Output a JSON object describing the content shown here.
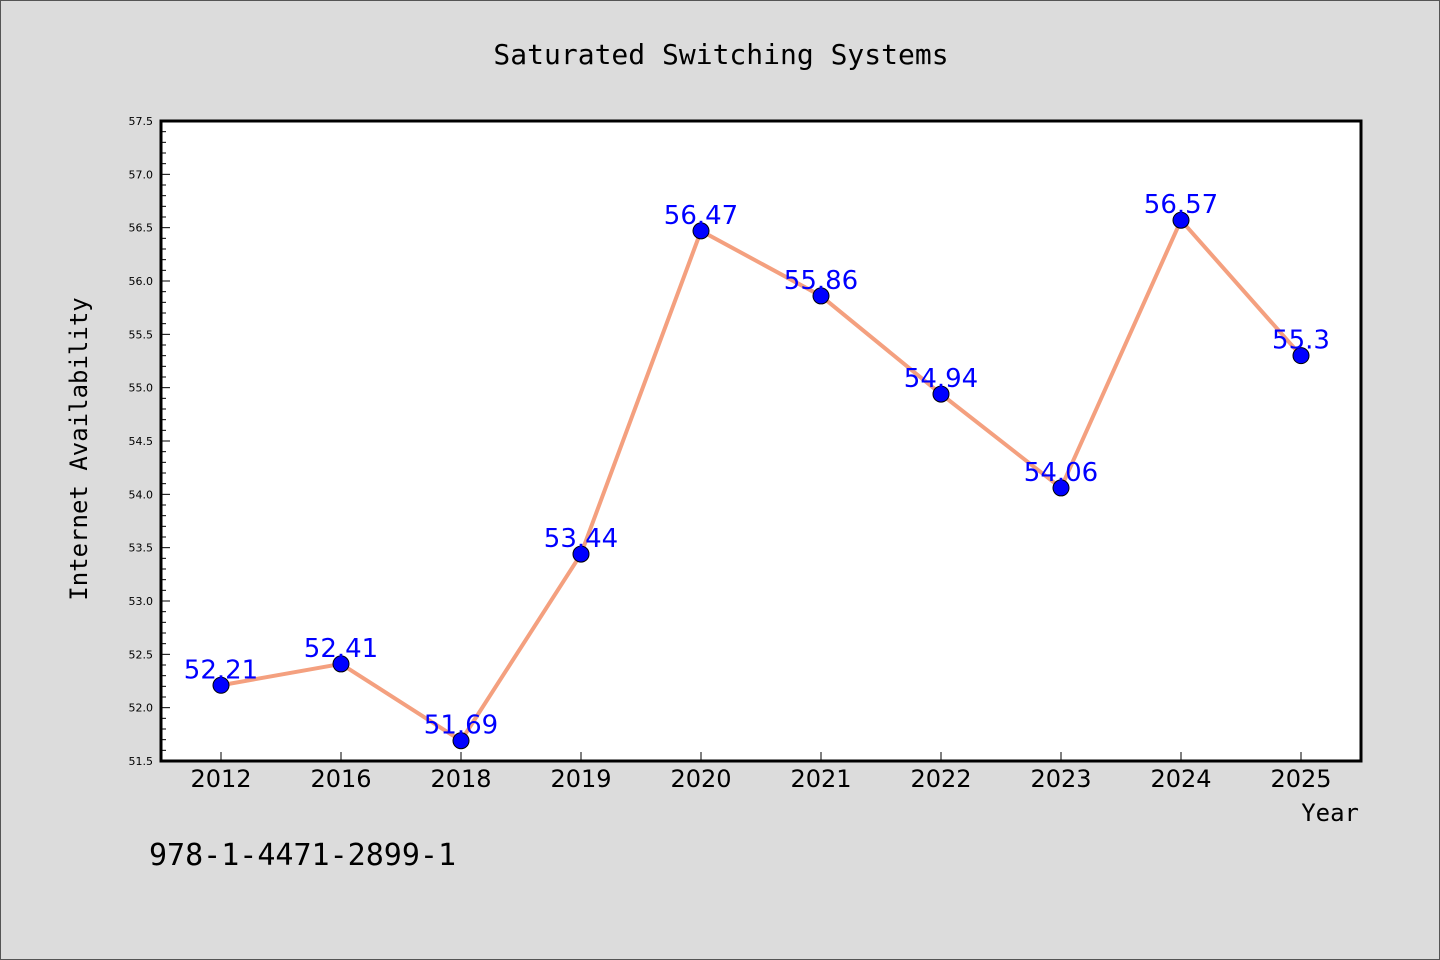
{
  "caption": "978-1-4471-2899-1",
  "colors": {
    "background": "#dcdcdc",
    "plot_background": "#ffffff",
    "line": "#f4a07f",
    "marker": "#0000ff",
    "data_label": "#0000ff"
  },
  "chart_data": {
    "type": "line",
    "title": "Saturated Switching Systems",
    "xlabel": "Year",
    "ylabel": "Internet Availability",
    "categories": [
      "2012",
      "2016",
      "2018",
      "2019",
      "2020",
      "2021",
      "2022",
      "2023",
      "2024",
      "2025"
    ],
    "series": [
      {
        "values": [
          52.21,
          52.41,
          51.69,
          53.44,
          56.47,
          55.86,
          54.94,
          54.06,
          56.57,
          55.3
        ],
        "data_labels": [
          "52.21",
          "52.41",
          "51.69",
          "53.44",
          "56.47",
          "55.86",
          "54.94",
          "54.06",
          "56.57",
          "55.3"
        ]
      }
    ],
    "ylim": [
      51.5,
      57.5
    ],
    "yticks": [
      "51.5",
      "52.0",
      "52.5",
      "53.0",
      "53.5",
      "54.0",
      "54.5",
      "55.0",
      "55.5",
      "56.0",
      "56.5",
      "57.0",
      "57.5"
    ],
    "grid": false,
    "legend": "none"
  }
}
